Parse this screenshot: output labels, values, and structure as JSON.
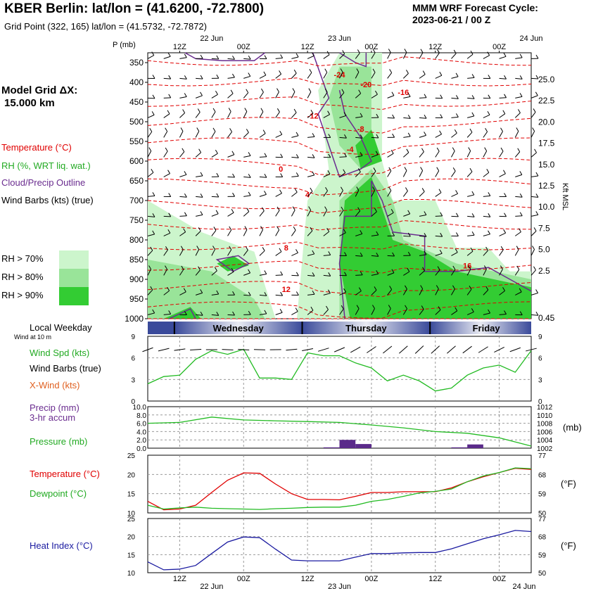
{
  "header": {
    "title": "KBER Berlin:  lat/lon = (41.6200, -72.7800)",
    "grid_point": "Grid Point (322, 165) lat/lon = (41.5732, -72.7872)",
    "cycle_line1": "MMM WRF Forecast Cycle:",
    "cycle_line2": "2023-06-21 / 00  Z",
    "model_grid_line1": "Model Grid ΔX:",
    "model_grid_line2": "15.000 km"
  },
  "legend": {
    "temperature": "Temperature (°C)",
    "rh": "RH (%, WRT liq. wat.)",
    "cloud": "Cloud/Precip Outline",
    "wind": "Wind Barbs (kts) (true)",
    "rh70": "RH > 70%",
    "rh80": "RH > 80%",
    "rh90": "RH > 90%"
  },
  "colors": {
    "rh70": "#ccf5cc",
    "rh80": "#99e499",
    "rh90": "#33cc33",
    "temp": "#e00000",
    "cloud": "#6a2c8f",
    "green": "#22bb22",
    "blue": "#1a1aa0",
    "purple": "#5a2a8a"
  },
  "time_axis": {
    "top_labels": [
      "12Z",
      "00Z",
      "12Z",
      "00Z",
      "12Z",
      "00Z"
    ],
    "date_labels": [
      "22 Jun",
      "23 Jun",
      "24 Jun"
    ],
    "weekdays": [
      "Wednesday",
      "Thursday",
      "Friday"
    ],
    "local_weekday": "Local Weekday",
    "wind_at": "Wind at 10 m"
  },
  "chart_data": [
    {
      "type": "heatmap",
      "name": "time-height cross section",
      "y_axis_label": "P (mb)",
      "pressure_levels": [
        350,
        400,
        450,
        500,
        550,
        600,
        650,
        700,
        750,
        800,
        850,
        900,
        950,
        1000
      ],
      "height_labels": [
        "25.0",
        "22.5",
        "20.0",
        "17.5",
        "15.0",
        "12.5",
        "10.0",
        "7.5",
        "5.0",
        "2.5",
        "0.45"
      ],
      "height_axis_label": "Kft MSL",
      "temperature_contours": [
        {
          "label": "-24",
          "pressure": 380,
          "hour": 36
        },
        {
          "label": "-20",
          "pressure": 405,
          "hour": 41
        },
        {
          "label": "-16",
          "pressure": 425,
          "hour": 48
        },
        {
          "label": "-12",
          "pressure": 485,
          "hour": 31
        },
        {
          "label": "-8",
          "pressure": 518,
          "hour": 40
        },
        {
          "label": "-4",
          "pressure": 570,
          "hour": 38
        },
        {
          "label": "0",
          "pressure": 620,
          "hour": 25
        },
        {
          "label": "4",
          "pressure": 685,
          "hour": 30
        },
        {
          "label": "8",
          "pressure": 820,
          "hour": 26
        },
        {
          "label": "12",
          "pressure": 925,
          "hour": 26
        },
        {
          "label": "16",
          "pressure": 865,
          "hour": 60
        }
      ]
    },
    {
      "type": "line",
      "name": "wind",
      "labels": [
        "Wind Spd (kts)",
        "Wind Barbs (true)",
        "X-Wind (kts)"
      ],
      "hours": [
        0,
        3,
        6,
        9,
        12,
        15,
        18,
        21,
        24,
        27,
        30,
        33,
        36,
        39,
        42,
        45,
        48,
        51,
        54,
        57,
        60,
        63,
        66,
        69,
        72
      ],
      "wind_speed": [
        2.4,
        3.4,
        3.6,
        5.8,
        7.0,
        6.5,
        7.2,
        3.2,
        3.2,
        3.0,
        6.7,
        6.3,
        6.3,
        5.3,
        4.6,
        2.8,
        3.6,
        2.8,
        1.4,
        1.8,
        3.6,
        4.6,
        5.0,
        4.0,
        7.0
      ],
      "ylim": [
        0,
        9
      ],
      "y_ticks": [
        "0",
        "3",
        "6",
        "9"
      ]
    },
    {
      "type": "bar",
      "name": "precipitation and pressure",
      "labels": [
        "Precip (mm)",
        "3-hr accum",
        "Pressure (mb)"
      ],
      "y_left_ticks": [
        "0.0",
        "2.0",
        "4.0",
        "6.0",
        "8.0",
        "10.0"
      ],
      "y_right_ticks": [
        "1002",
        "1004",
        "1006",
        "1008",
        "1010",
        "1012"
      ],
      "y_right_unit": "(mb)",
      "precip_hours": [
        33,
        36,
        39,
        57,
        60
      ],
      "precip_mm": [
        0.2,
        2.0,
        1.0,
        0.2,
        0.9
      ],
      "pressure_hours": [
        0,
        6,
        12,
        18,
        24,
        30,
        36,
        42,
        48,
        54,
        60,
        66,
        72
      ],
      "pressure_mb": [
        1008.0,
        1008.2,
        1009.5,
        1008.8,
        1008.6,
        1008.4,
        1008.2,
        1007.6,
        1006.9,
        1006.0,
        1005.6,
        1004.5,
        1002.5
      ]
    },
    {
      "type": "line",
      "name": "temperature and dewpoint",
      "labels": [
        "Temperature (°C)",
        "Dewpoint (°C)"
      ],
      "y_left_ticks": [
        "10",
        "15",
        "20",
        "25"
      ],
      "y_right_ticks": [
        "50",
        "59",
        "68",
        "77"
      ],
      "y_right_unit": "(°F)",
      "hours": [
        0,
        3,
        6,
        9,
        12,
        15,
        18,
        21,
        24,
        27,
        30,
        33,
        36,
        39,
        42,
        45,
        48,
        51,
        54,
        57,
        60,
        63,
        66,
        69,
        72
      ],
      "temperature": [
        13.0,
        10.8,
        11.0,
        12.0,
        15.3,
        18.5,
        20.4,
        20.3,
        17.5,
        15.0,
        13.5,
        13.5,
        13.4,
        14.3,
        15.3,
        15.3,
        15.5,
        15.5,
        15.5,
        16.5,
        18.1,
        19.4,
        20.5,
        21.6,
        21.3
      ],
      "dewpoint": [
        12.0,
        11.0,
        11.3,
        11.5,
        11.2,
        11.1,
        11.0,
        10.9,
        11.1,
        11.2,
        11.4,
        11.5,
        11.5,
        12.0,
        13.0,
        13.5,
        14.3,
        15.2,
        15.6,
        16.2,
        18.1,
        19.6,
        20.5,
        21.7,
        21.5
      ]
    },
    {
      "type": "line",
      "name": "heat index",
      "labels": [
        "Heat Index (°C)"
      ],
      "y_left_ticks": [
        "10",
        "15",
        "20",
        "25"
      ],
      "y_right_ticks": [
        "50",
        "59",
        "68",
        "77"
      ],
      "y_right_unit": "(°F)",
      "hours": [
        0,
        3,
        6,
        9,
        12,
        15,
        18,
        21,
        24,
        27,
        30,
        33,
        36,
        39,
        42,
        45,
        48,
        51,
        54,
        57,
        60,
        63,
        66,
        69,
        72
      ],
      "heat_index": [
        13.0,
        10.8,
        11.0,
        12.0,
        15.3,
        18.5,
        19.9,
        19.7,
        16.5,
        13.5,
        13.3,
        13.3,
        13.3,
        14.3,
        15.3,
        15.3,
        15.5,
        15.6,
        15.6,
        16.6,
        18.0,
        19.4,
        20.5,
        21.7,
        21.4
      ]
    }
  ]
}
